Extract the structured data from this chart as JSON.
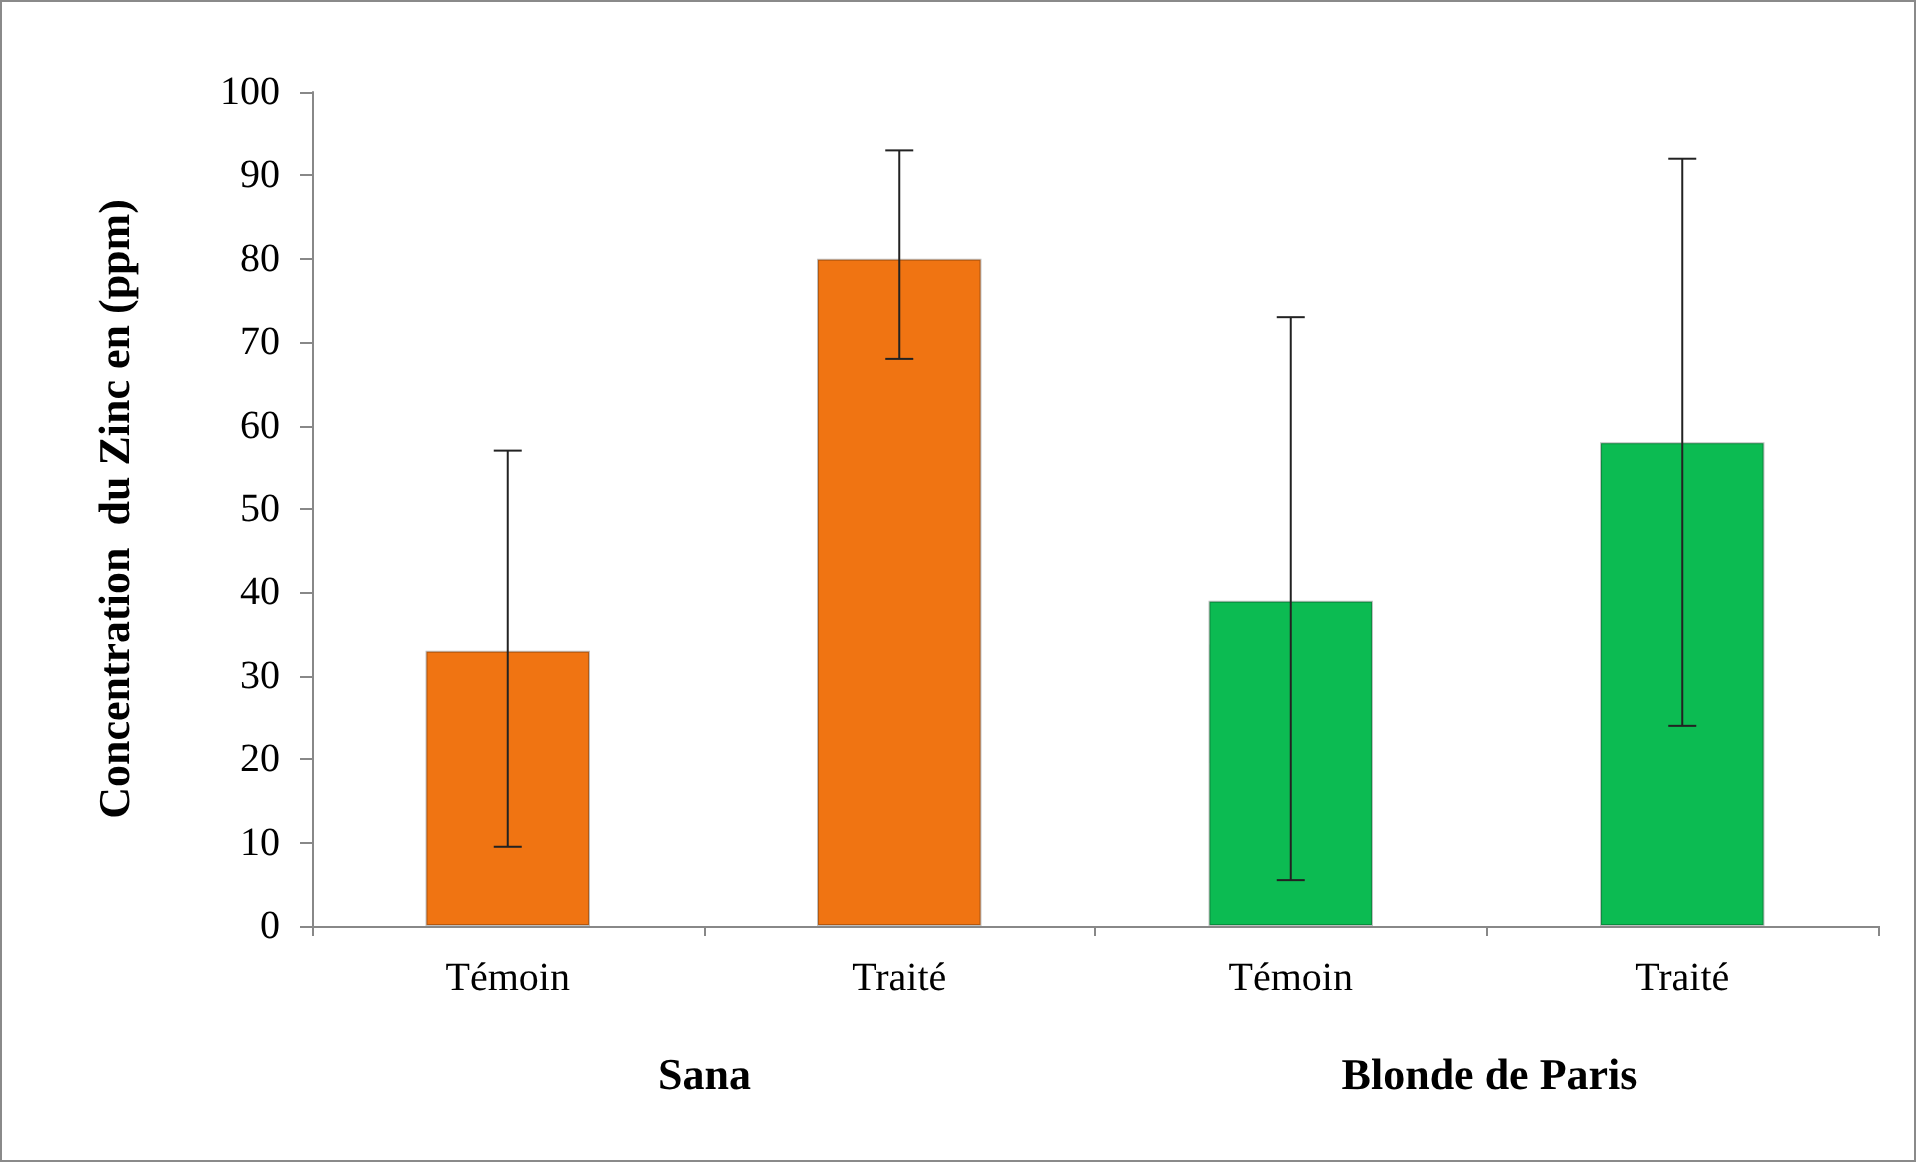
{
  "chart_data": {
    "type": "bar",
    "ylabel": "Concentration  du Zinc en (ppm)",
    "categories": [
      "Témoin",
      "Traité",
      "Témoin",
      "Traité"
    ],
    "values": [
      33,
      80,
      39,
      58
    ],
    "colors": [
      "#f07412",
      "#f07412",
      "#0cbb52",
      "#0cbb52"
    ],
    "errors": [
      [
        9.5,
        57
      ],
      [
        68,
        93
      ],
      [
        5.5,
        73
      ],
      [
        24,
        92
      ]
    ],
    "ylim": [
      0,
      100
    ],
    "yticks": [
      0,
      10,
      20,
      30,
      40,
      50,
      60,
      70,
      80,
      90,
      100
    ],
    "grid": false,
    "annotations": [
      "Sana",
      "Blonde de Paris"
    ]
  }
}
